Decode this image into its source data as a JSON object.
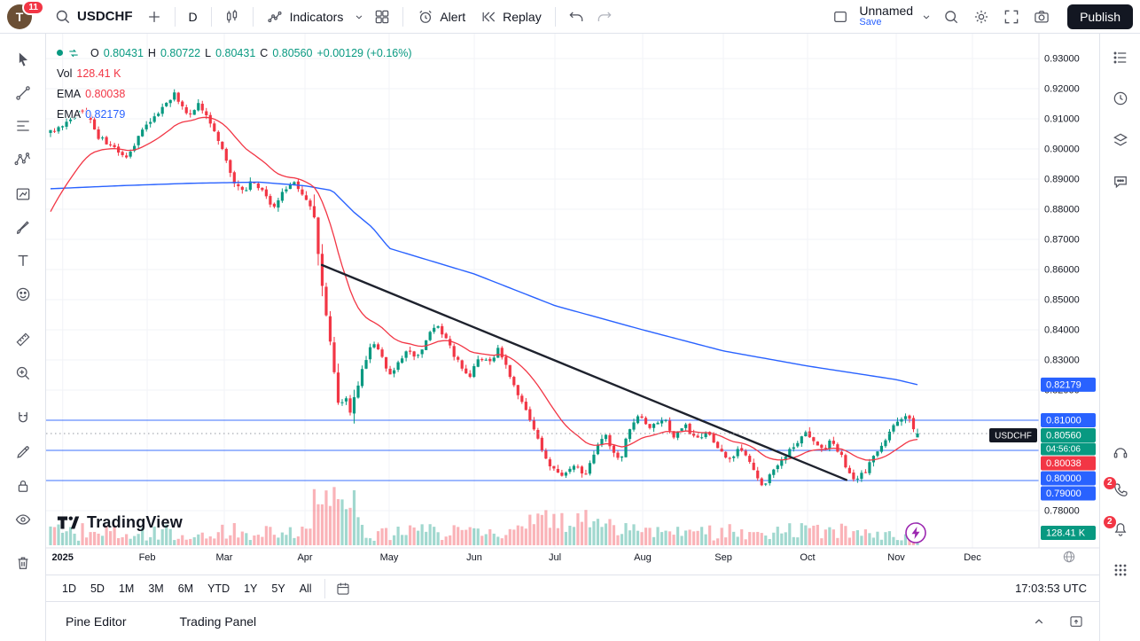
{
  "topbar": {
    "avatar_initial": "T",
    "notifications_badge": "11",
    "symbol": "USDCHF",
    "interval": "D",
    "indicators_label": "Indicators",
    "alert_label": "Alert",
    "replay_label": "Replay",
    "layout_name": "Unnamed",
    "save_label": "Save",
    "publish_label": "Publish"
  },
  "legend": {
    "o_label": "O",
    "o_value": "0.80431",
    "h_label": "H",
    "h_value": "0.80722",
    "l_label": "L",
    "l_value": "0.80431",
    "c_label": "C",
    "c_value": "0.80560",
    "change": "+0.00129 (+0.16%)",
    "vol_label": "Vol",
    "vol_value": "128.41 K",
    "ema_fast_label": "EMA",
    "ema_fast_value": "0.80038",
    "ema_slow_label": "EMA",
    "ema_slow_value": "0.82179"
  },
  "watermark_text": "TradingView",
  "chart_data": {
    "type": "candlestick",
    "symbol": "USDCHF",
    "interval": "1D",
    "last_bar": {
      "open": 0.80431,
      "high": 0.80722,
      "low": 0.80431,
      "close": 0.8056,
      "change": "+0.00129 (+0.16%)",
      "volume": "128.41 K"
    },
    "price_range": [
      0.78,
      0.93
    ],
    "price_axis_ticks": [
      "0.93000",
      "0.92000",
      "0.91000",
      "0.90000",
      "0.89000",
      "0.88000",
      "0.87000",
      "0.86000",
      "0.85000",
      "0.84000",
      "0.83000",
      "0.82000",
      "0.81000",
      "0.80000",
      "0.79000",
      "0.78000"
    ],
    "time_axis": [
      {
        "label": "2025",
        "t": 0.014
      },
      {
        "label": "Feb",
        "t": 0.1115
      },
      {
        "label": "Mar",
        "t": 0.2004
      },
      {
        "label": "Apr",
        "t": 0.2935
      },
      {
        "label": "May",
        "t": 0.3906
      },
      {
        "label": "Jun",
        "t": 0.4888
      },
      {
        "label": "Jul",
        "t": 0.5818
      },
      {
        "label": "Aug",
        "t": 0.683
      },
      {
        "label": "Sep",
        "t": 0.7761
      },
      {
        "label": "Oct",
        "t": 0.8732
      },
      {
        "label": "Nov",
        "t": 0.9755
      },
      {
        "label": "Dec",
        "t": 1.0634
      }
    ],
    "price_anchors": [
      [
        0,
        0.9055
      ],
      [
        0.018,
        0.909
      ],
      [
        0.039,
        0.9135
      ],
      [
        0.055,
        0.904
      ],
      [
        0.07,
        0.901
      ],
      [
        0.09,
        0.8975
      ],
      [
        0.105,
        0.906
      ],
      [
        0.12,
        0.9105
      ],
      [
        0.143,
        0.9185
      ],
      [
        0.158,
        0.911
      ],
      [
        0.172,
        0.915
      ],
      [
        0.185,
        0.9075
      ],
      [
        0.2,
        0.899
      ],
      [
        0.212,
        0.889
      ],
      [
        0.222,
        0.8855
      ],
      [
        0.233,
        0.89
      ],
      [
        0.245,
        0.886
      ],
      [
        0.257,
        0.88
      ],
      [
        0.268,
        0.886
      ],
      [
        0.28,
        0.889
      ],
      [
        0.292,
        0.884
      ],
      [
        0.302,
        0.8805
      ],
      [
        0.31,
        0.862
      ],
      [
        0.318,
        0.845
      ],
      [
        0.326,
        0.826
      ],
      [
        0.333,
        0.815
      ],
      [
        0.34,
        0.82
      ],
      [
        0.347,
        0.813
      ],
      [
        0.355,
        0.822
      ],
      [
        0.363,
        0.83
      ],
      [
        0.372,
        0.8365
      ],
      [
        0.382,
        0.831
      ],
      [
        0.391,
        0.825
      ],
      [
        0.402,
        0.829
      ],
      [
        0.412,
        0.833
      ],
      [
        0.422,
        0.83
      ],
      [
        0.434,
        0.8375
      ],
      [
        0.445,
        0.8425
      ],
      [
        0.457,
        0.836
      ],
      [
        0.47,
        0.8295
      ],
      [
        0.483,
        0.8245
      ],
      [
        0.495,
        0.831
      ],
      [
        0.506,
        0.8285
      ],
      [
        0.516,
        0.8335
      ],
      [
        0.53,
        0.825
      ],
      [
        0.543,
        0.8165
      ],
      [
        0.555,
        0.8085
      ],
      [
        0.567,
        0.8
      ],
      [
        0.578,
        0.7945
      ],
      [
        0.591,
        0.791
      ],
      [
        0.604,
        0.7955
      ],
      [
        0.617,
        0.792
      ],
      [
        0.627,
        0.799
      ],
      [
        0.639,
        0.8055
      ],
      [
        0.649,
        0.8
      ],
      [
        0.657,
        0.7965
      ],
      [
        0.668,
        0.8075
      ],
      [
        0.68,
        0.8115
      ],
      [
        0.693,
        0.8075
      ],
      [
        0.707,
        0.8105
      ],
      [
        0.719,
        0.805
      ],
      [
        0.731,
        0.8085
      ],
      [
        0.744,
        0.8035
      ],
      [
        0.758,
        0.8065
      ],
      [
        0.77,
        0.8005
      ],
      [
        0.782,
        0.7965
      ],
      [
        0.795,
        0.8005
      ],
      [
        0.809,
        0.7945
      ],
      [
        0.821,
        0.7878
      ],
      [
        0.833,
        0.7935
      ],
      [
        0.847,
        0.798
      ],
      [
        0.86,
        0.8025
      ],
      [
        0.872,
        0.8055
      ],
      [
        0.888,
        0.8
      ],
      [
        0.901,
        0.8035
      ],
      [
        0.913,
        0.7975
      ],
      [
        0.925,
        0.7898
      ],
      [
        0.939,
        0.793
      ],
      [
        0.952,
        0.799
      ],
      [
        0.964,
        0.8045
      ],
      [
        0.977,
        0.81
      ],
      [
        0.987,
        0.812
      ],
      [
        0.994,
        0.808
      ],
      [
        1,
        0.8056
      ]
    ],
    "ema_fast": {
      "label": "EMA",
      "period": 21,
      "start": 0.8765,
      "value": 0.80038,
      "color": "#f23645"
    },
    "ema_slow": {
      "label": "EMA",
      "value": 0.82179,
      "color": "#2962ff",
      "anchors": [
        [
          0,
          0.8868
        ],
        [
          0.08,
          0.8878
        ],
        [
          0.16,
          0.8886
        ],
        [
          0.24,
          0.889
        ],
        [
          0.293,
          0.8878
        ],
        [
          0.325,
          0.8862
        ],
        [
          0.35,
          0.879
        ],
        [
          0.371,
          0.874
        ],
        [
          0.391,
          0.867
        ],
        [
          0.489,
          0.8585
        ],
        [
          0.582,
          0.848
        ],
        [
          0.683,
          0.84
        ],
        [
          0.776,
          0.833
        ],
        [
          0.873,
          0.828
        ],
        [
          0.975,
          0.8235
        ],
        [
          1,
          0.8218
        ]
      ]
    },
    "levels": [
      {
        "price": 0.81,
        "label": "0.81000"
      },
      {
        "price": 0.8,
        "label": "0.80000"
      },
      {
        "price": 0.79,
        "label": "0.79000"
      }
    ],
    "ema_badges": [
      {
        "price": 0.82179,
        "label": "0.82179",
        "color": "#2962ff"
      },
      {
        "price": 0.80038,
        "label": "0.80038",
        "color": "#f23645"
      }
    ],
    "current_price": {
      "price": 0.8056,
      "label": "0.80560",
      "countdown": "04:56:06",
      "symbol_label": "USDCHF"
    },
    "volume_badge": "128.41 K",
    "trendline": {
      "t1": 0.313,
      "p1": 0.8615,
      "t2": 0.918,
      "p2": 0.7902
    },
    "volume_spike_ranges": [
      [
        0.3,
        0.36
      ],
      [
        0.55,
        0.65
      ]
    ],
    "colors": {
      "up": "#089981",
      "down": "#f23645",
      "level": "#2962ff",
      "trend": "#1e222d",
      "grid": "#f2f3f7",
      "axis_line": "#e0e3eb",
      "price_line": "#9598a1"
    }
  },
  "timeframe_bar": {
    "ranges": [
      "1D",
      "5D",
      "1M",
      "3M",
      "6M",
      "YTD",
      "1Y",
      "5Y",
      "All"
    ],
    "clock": "17:03:53 UTC"
  },
  "statusbar": {
    "tabs": [
      "Pine Editor",
      "Trading Panel"
    ]
  },
  "sidebar_badges": {
    "phone": "2",
    "bell": "2"
  }
}
